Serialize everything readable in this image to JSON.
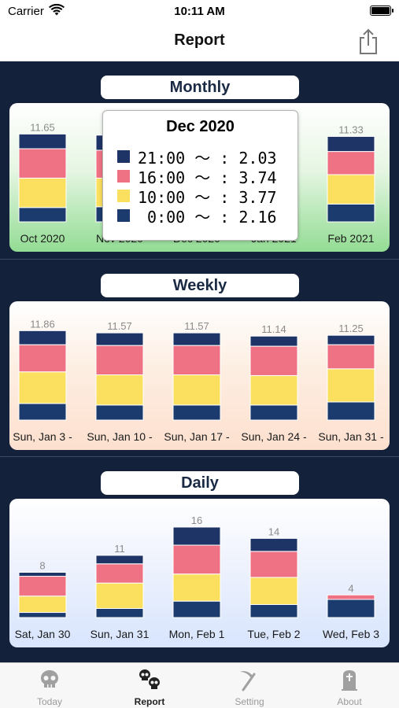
{
  "status_bar": {
    "carrier": "Carrier",
    "time": "10:11 AM"
  },
  "nav": {
    "title": "Report"
  },
  "colors": {
    "c2100": "#1e3366",
    "c1600": "#ef7284",
    "c1000": "#fbdf5e",
    "c0000": "#1b3a6d",
    "background": "#14213a"
  },
  "sections": {
    "monthly": {
      "title": "Monthly"
    },
    "weekly": {
      "title": "Weekly"
    },
    "daily": {
      "title": "Daily"
    }
  },
  "popover": {
    "title": "Dec 2020",
    "rows": [
      {
        "text": "21:00 ～ : 2.03",
        "color": "#1e3366"
      },
      {
        "text": "16:00 ～ : 3.74",
        "color": "#ef7284"
      },
      {
        "text": "10:00 ～ : 3.77",
        "color": "#fbdf5e"
      },
      {
        "text": " 0:00 ～ : 2.16",
        "color": "#1b3a6d"
      }
    ]
  },
  "chart_data": [
    {
      "type": "bar",
      "title": "Monthly",
      "stacked": true,
      "categories": [
        "Oct 2020",
        "Nov 2020",
        "Dec 2020",
        "Jan 2021",
        "Feb 2021"
      ],
      "totals": [
        "11.65",
        "",
        "",
        "",
        "11.33"
      ],
      "series": [
        {
          "values": [
            1.9,
            2.0,
            2.16,
            2.0,
            2.36
          ]
        },
        {
          "values": [
            3.9,
            3.8,
            3.77,
            3.8,
            3.9
          ]
        },
        {
          "values": [
            3.9,
            3.7,
            3.74,
            3.7,
            3.07
          ]
        },
        {
          "values": [
            1.95,
            2.0,
            2.03,
            2.0,
            2.0
          ]
        }
      ],
      "ylim": [
        0,
        12
      ]
    },
    {
      "type": "bar",
      "title": "Weekly",
      "stacked": true,
      "categories": [
        "Sun, Jan 3 -",
        "Sun, Jan 10 -",
        "Sun, Jan 17 -",
        "Sun, Jan 24 -",
        "Sun, Jan 31 -"
      ],
      "totals": [
        "11.86",
        "11.57",
        "11.57",
        "11.14",
        "11.25"
      ],
      "series": [
        {
          "values": [
            2.2,
            2.0,
            2.0,
            2.0,
            2.4
          ]
        },
        {
          "values": [
            4.2,
            4.0,
            4.0,
            3.9,
            4.4
          ]
        },
        {
          "values": [
            3.6,
            3.9,
            3.9,
            3.9,
            3.2
          ]
        },
        {
          "values": [
            1.86,
            1.67,
            1.67,
            1.34,
            1.25
          ]
        }
      ],
      "ylim": [
        0,
        12
      ]
    },
    {
      "type": "bar",
      "title": "Daily",
      "stacked": true,
      "categories": [
        "Sat, Jan 30",
        "Sun, Jan 31",
        "Mon, Feb 1",
        "Tue, Feb 2",
        "Wed, Feb 3"
      ],
      "totals": [
        "8",
        "11",
        "16",
        "14",
        "4"
      ],
      "series": [
        {
          "values": [
            0.9,
            1.6,
            2.9,
            2.3,
            3.2
          ]
        },
        {
          "values": [
            2.9,
            4.5,
            4.8,
            4.8,
            0
          ]
        },
        {
          "values": [
            3.5,
            3.4,
            5.1,
            4.6,
            0.8
          ]
        },
        {
          "values": [
            0.7,
            1.5,
            3.2,
            2.3,
            0
          ]
        }
      ],
      "ylim": [
        0,
        16
      ]
    }
  ],
  "tabs": [
    {
      "label": "Today",
      "icon": "skull-icon"
    },
    {
      "label": "Report",
      "icon": "two-skulls-icon"
    },
    {
      "label": "Setting",
      "icon": "scythe-icon"
    },
    {
      "label": "About",
      "icon": "tombstone-icon"
    }
  ]
}
